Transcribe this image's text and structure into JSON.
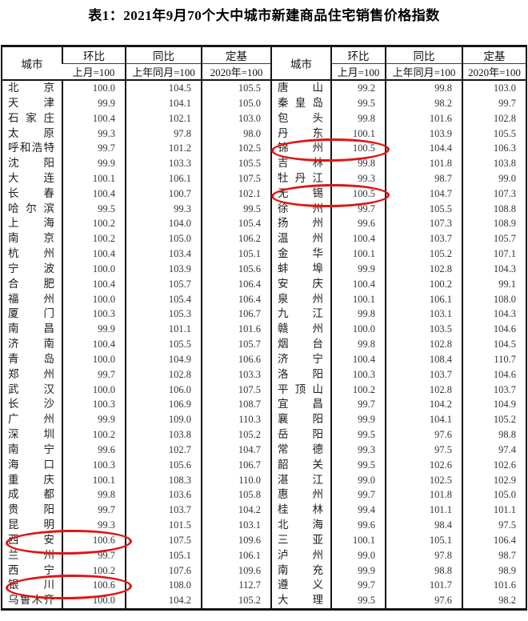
{
  "title": "表1：2021年9月70个大中城市新建商品住宅销售价格指数",
  "header": {
    "city": "城市",
    "mom": "环比",
    "mom_sub": "上月=100",
    "yoy": "同比",
    "yoy_sub": "上年同月=100",
    "fixed": "定基",
    "fixed_sub": "2020年=100"
  },
  "annotations": {
    "circle_color": "#e01512",
    "circled_cities": [
      "锦州",
      "无锡",
      "西安",
      "银川"
    ]
  },
  "panels": [
    {
      "circled_rows": [
        30,
        33
      ],
      "rows": [
        [
          "北京",
          "100.0",
          "104.5",
          "105.5"
        ],
        [
          "天津",
          "99.9",
          "104.1",
          "105.0"
        ],
        [
          "石家庄",
          "100.4",
          "102.1",
          "103.0"
        ],
        [
          "太原",
          "99.3",
          "97.8",
          "98.0"
        ],
        [
          "呼和浩特",
          "99.7",
          "101.2",
          "102.5"
        ],
        [
          "沈阳",
          "99.9",
          "103.3",
          "105.5"
        ],
        [
          "大连",
          "100.1",
          "106.1",
          "107.5"
        ],
        [
          "长春",
          "100.4",
          "100.7",
          "102.1"
        ],
        [
          "哈尔滨",
          "99.5",
          "99.3",
          "99.5"
        ],
        [
          "上海",
          "100.2",
          "104.0",
          "105.4"
        ],
        [
          "南京",
          "100.2",
          "105.0",
          "106.2"
        ],
        [
          "杭州",
          "100.4",
          "103.4",
          "105.1"
        ],
        [
          "宁波",
          "100.0",
          "103.9",
          "105.6"
        ],
        [
          "合肥",
          "100.4",
          "105.7",
          "106.4"
        ],
        [
          "福州",
          "100.0",
          "105.4",
          "106.4"
        ],
        [
          "厦门",
          "100.3",
          "105.3",
          "106.7"
        ],
        [
          "南昌",
          "99.9",
          "101.1",
          "101.6"
        ],
        [
          "济南",
          "100.4",
          "105.5",
          "105.7"
        ],
        [
          "青岛",
          "100.0",
          "104.9",
          "106.6"
        ],
        [
          "郑州",
          "99.7",
          "102.8",
          "103.3"
        ],
        [
          "武汉",
          "100.0",
          "106.0",
          "107.5"
        ],
        [
          "长沙",
          "100.3",
          "106.9",
          "108.7"
        ],
        [
          "广州",
          "99.9",
          "109.0",
          "110.3"
        ],
        [
          "深圳",
          "100.2",
          "103.8",
          "105.2"
        ],
        [
          "南宁",
          "99.6",
          "102.7",
          "104.7"
        ],
        [
          "海口",
          "100.3",
          "105.6",
          "106.7"
        ],
        [
          "重庆",
          "100.1",
          "108.3",
          "110.0"
        ],
        [
          "成都",
          "99.8",
          "103.6",
          "105.8"
        ],
        [
          "贵阳",
          "99.7",
          "103.7",
          "104.2"
        ],
        [
          "昆明",
          "99.3",
          "101.5",
          "103.1"
        ],
        [
          "西安",
          "100.6",
          "107.5",
          "109.6"
        ],
        [
          "兰州",
          "99.7",
          "105.1",
          "106.1"
        ],
        [
          "西宁",
          "100.2",
          "107.6",
          "109.6"
        ],
        [
          "银川",
          "100.6",
          "108.0",
          "112.7"
        ],
        [
          "乌鲁木齐",
          "100.0",
          "104.2",
          "105.2"
        ]
      ]
    },
    {
      "circled_rows": [
        4,
        7
      ],
      "rows": [
        [
          "唐山",
          "99.2",
          "99.8",
          "103.0"
        ],
        [
          "秦皇岛",
          "99.5",
          "98.2",
          "99.7"
        ],
        [
          "包头",
          "99.8",
          "101.6",
          "102.8"
        ],
        [
          "丹东",
          "100.1",
          "103.9",
          "105.5"
        ],
        [
          "锦州",
          "100.5",
          "104.4",
          "106.3"
        ],
        [
          "吉林",
          "99.8",
          "101.8",
          "103.8"
        ],
        [
          "牡丹江",
          "99.3",
          "98.7",
          "99.0"
        ],
        [
          "无锡",
          "100.5",
          "104.7",
          "107.3"
        ],
        [
          "徐州",
          "99.7",
          "105.5",
          "108.8"
        ],
        [
          "扬州",
          "99.6",
          "107.3",
          "108.9"
        ],
        [
          "温州",
          "100.4",
          "103.7",
          "105.7"
        ],
        [
          "金华",
          "100.1",
          "105.2",
          "107.1"
        ],
        [
          "蚌埠",
          "99.9",
          "102.8",
          "104.3"
        ],
        [
          "安庆",
          "100.4",
          "100.2",
          "99.1"
        ],
        [
          "泉州",
          "100.1",
          "106.1",
          "108.0"
        ],
        [
          "九江",
          "99.8",
          "103.1",
          "104.3"
        ],
        [
          "赣州",
          "100.0",
          "103.5",
          "104.6"
        ],
        [
          "烟台",
          "99.8",
          "102.8",
          "104.5"
        ],
        [
          "济宁",
          "100.4",
          "108.4",
          "110.7"
        ],
        [
          "洛阳",
          "100.3",
          "103.7",
          "104.6"
        ],
        [
          "平顶山",
          "100.2",
          "102.8",
          "103.7"
        ],
        [
          "宜昌",
          "99.7",
          "104.2",
          "104.9"
        ],
        [
          "襄阳",
          "99.9",
          "104.1",
          "105.2"
        ],
        [
          "岳阳",
          "99.5",
          "97.6",
          "98.8"
        ],
        [
          "常德",
          "99.3",
          "97.5",
          "97.4"
        ],
        [
          "韶关",
          "99.5",
          "102.6",
          "102.6"
        ],
        [
          "湛江",
          "99.0",
          "102.5",
          "102.9"
        ],
        [
          "惠州",
          "99.7",
          "101.8",
          "105.0"
        ],
        [
          "桂林",
          "99.4",
          "101.1",
          "101.1"
        ],
        [
          "北海",
          "99.6",
          "98.4",
          "97.5"
        ],
        [
          "三亚",
          "100.1",
          "105.1",
          "106.4"
        ],
        [
          "泸州",
          "99.0",
          "97.8",
          "98.7"
        ],
        [
          "南充",
          "99.9",
          "98.8",
          "98.9"
        ],
        [
          "遵义",
          "99.7",
          "101.7",
          "101.6"
        ],
        [
          "大理",
          "99.5",
          "97.6",
          "98.2"
        ]
      ]
    }
  ]
}
